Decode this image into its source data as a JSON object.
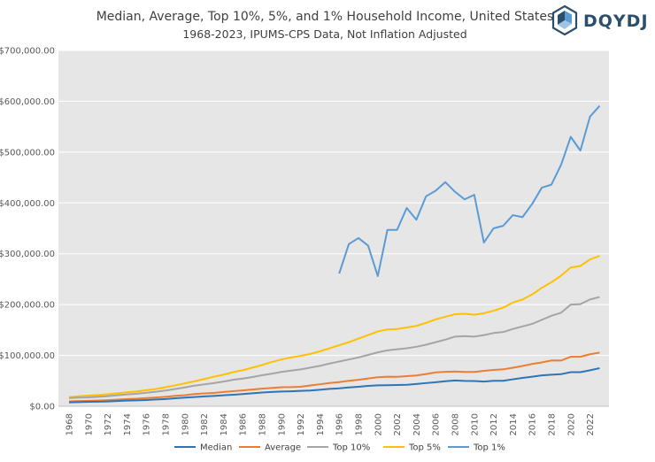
{
  "brand": {
    "logo_text": "DQYDJ"
  },
  "chart_data": {
    "type": "line",
    "title": "Median, Average, Top 10%, 5%, and 1% Household Income, United States",
    "subtitle": "1968-2023, IPUMS-CPS Data, Not Inflation Adjusted",
    "xlabel": "",
    "ylabel": "",
    "xlim": [
      1968,
      2023
    ],
    "ylim": [
      0,
      700000
    ],
    "y_ticks": [
      0,
      100000,
      200000,
      300000,
      400000,
      500000,
      600000,
      700000
    ],
    "y_tick_labels": [
      "$0.00",
      "$100,000.00",
      "$200,000.00",
      "$300,000.00",
      "$400,000.00",
      "$500,000.00",
      "$600,000.00",
      "$700,000.00"
    ],
    "x_tick_labels": [
      "1968",
      "1970",
      "1972",
      "1974",
      "1976",
      "1978",
      "1980",
      "1982",
      "1984",
      "1986",
      "1988",
      "1990",
      "1992",
      "1994",
      "1996",
      "1998",
      "2000",
      "2002",
      "2004",
      "2006",
      "2008",
      "2010",
      "2012",
      "2014",
      "2016",
      "2018",
      "2020",
      "2022"
    ],
    "grid": true,
    "legend_position": "bottom",
    "series": [
      {
        "name": "Median",
        "color": "#2e75b6",
        "x_start": 1968,
        "values": [
          7700,
          8100,
          8700,
          9000,
          9300,
          10200,
          11000,
          11500,
          12300,
          13300,
          14200,
          15600,
          17000,
          18100,
          19300,
          20200,
          21500,
          22700,
          23900,
          25400,
          26900,
          28100,
          28900,
          29400,
          30300,
          30900,
          32400,
          34100,
          35200,
          37000,
          38400,
          40000,
          41100,
          41300,
          41800,
          42300,
          43800,
          45600,
          47200,
          49100,
          50700,
          49900,
          49600,
          48500,
          50000,
          50100,
          53000,
          55800,
          58100,
          60700,
          62000,
          63200,
          67100,
          67000,
          70700,
          75000
        ]
      },
      {
        "name": "Average",
        "color": "#ed7d31",
        "x_start": 1968,
        "values": [
          9600,
          10300,
          10700,
          11200,
          12000,
          13000,
          14100,
          14800,
          16000,
          17200,
          18600,
          20400,
          21800,
          23900,
          25300,
          26200,
          28000,
          29700,
          31200,
          32800,
          34600,
          36000,
          37400,
          37600,
          38400,
          41000,
          43200,
          45800,
          47500,
          50000,
          52100,
          54700,
          57100,
          58200,
          57900,
          59100,
          60500,
          63300,
          66600,
          67600,
          68400,
          67500,
          67500,
          69700,
          71300,
          72600,
          75700,
          79300,
          83100,
          86200,
          90000,
          89900,
          97500,
          97300,
          102300,
          105600
        ]
      },
      {
        "name": "Top 10%",
        "color": "#a5a5a5",
        "x_start": 1968,
        "values": [
          16000,
          17000,
          17500,
          18500,
          19800,
          21500,
          23200,
          24500,
          26500,
          28500,
          31000,
          34000,
          37000,
          40500,
          43000,
          45500,
          48500,
          52000,
          54500,
          57500,
          61000,
          64000,
          67500,
          70000,
          72500,
          76000,
          79500,
          84000,
          88000,
          92000,
          96000,
          101000,
          106000,
          110000,
          112000,
          114000,
          117000,
          121000,
          126000,
          131000,
          137000,
          138000,
          137000,
          140000,
          144000,
          146000,
          152000,
          157000,
          162000,
          170000,
          178000,
          184000,
          200000,
          201000,
          210000,
          215000
        ]
      },
      {
        "name": "Top 5%",
        "color": "#ffc000",
        "x_start": 1968,
        "values": [
          18000,
          19500,
          21000,
          22000,
          23500,
          25500,
          27500,
          29000,
          31500,
          34000,
          37500,
          41000,
          45000,
          49000,
          53500,
          58000,
          62000,
          67000,
          71000,
          76000,
          81000,
          87000,
          92000,
          96000,
          99000,
          103000,
          108000,
          114000,
          120000,
          126000,
          133000,
          140000,
          147000,
          151000,
          152000,
          155000,
          158000,
          164000,
          171000,
          176000,
          181000,
          182000,
          180000,
          183000,
          188000,
          194000,
          204000,
          210000,
          220000,
          233000,
          244000,
          257000,
          273000,
          276000,
          289000,
          296000
        ]
      },
      {
        "name": "Top 1%",
        "color": "#5b9bd5",
        "x_start": 1996,
        "values": [
          261000,
          319000,
          331000,
          316000,
          256000,
          347000,
          347000,
          390000,
          367000,
          413000,
          424000,
          441000,
          422000,
          407000,
          416000,
          322000,
          350000,
          355000,
          376000,
          372000,
          398000,
          430000,
          436000,
          475000,
          530000,
          503000,
          570000,
          591000
        ]
      }
    ]
  }
}
